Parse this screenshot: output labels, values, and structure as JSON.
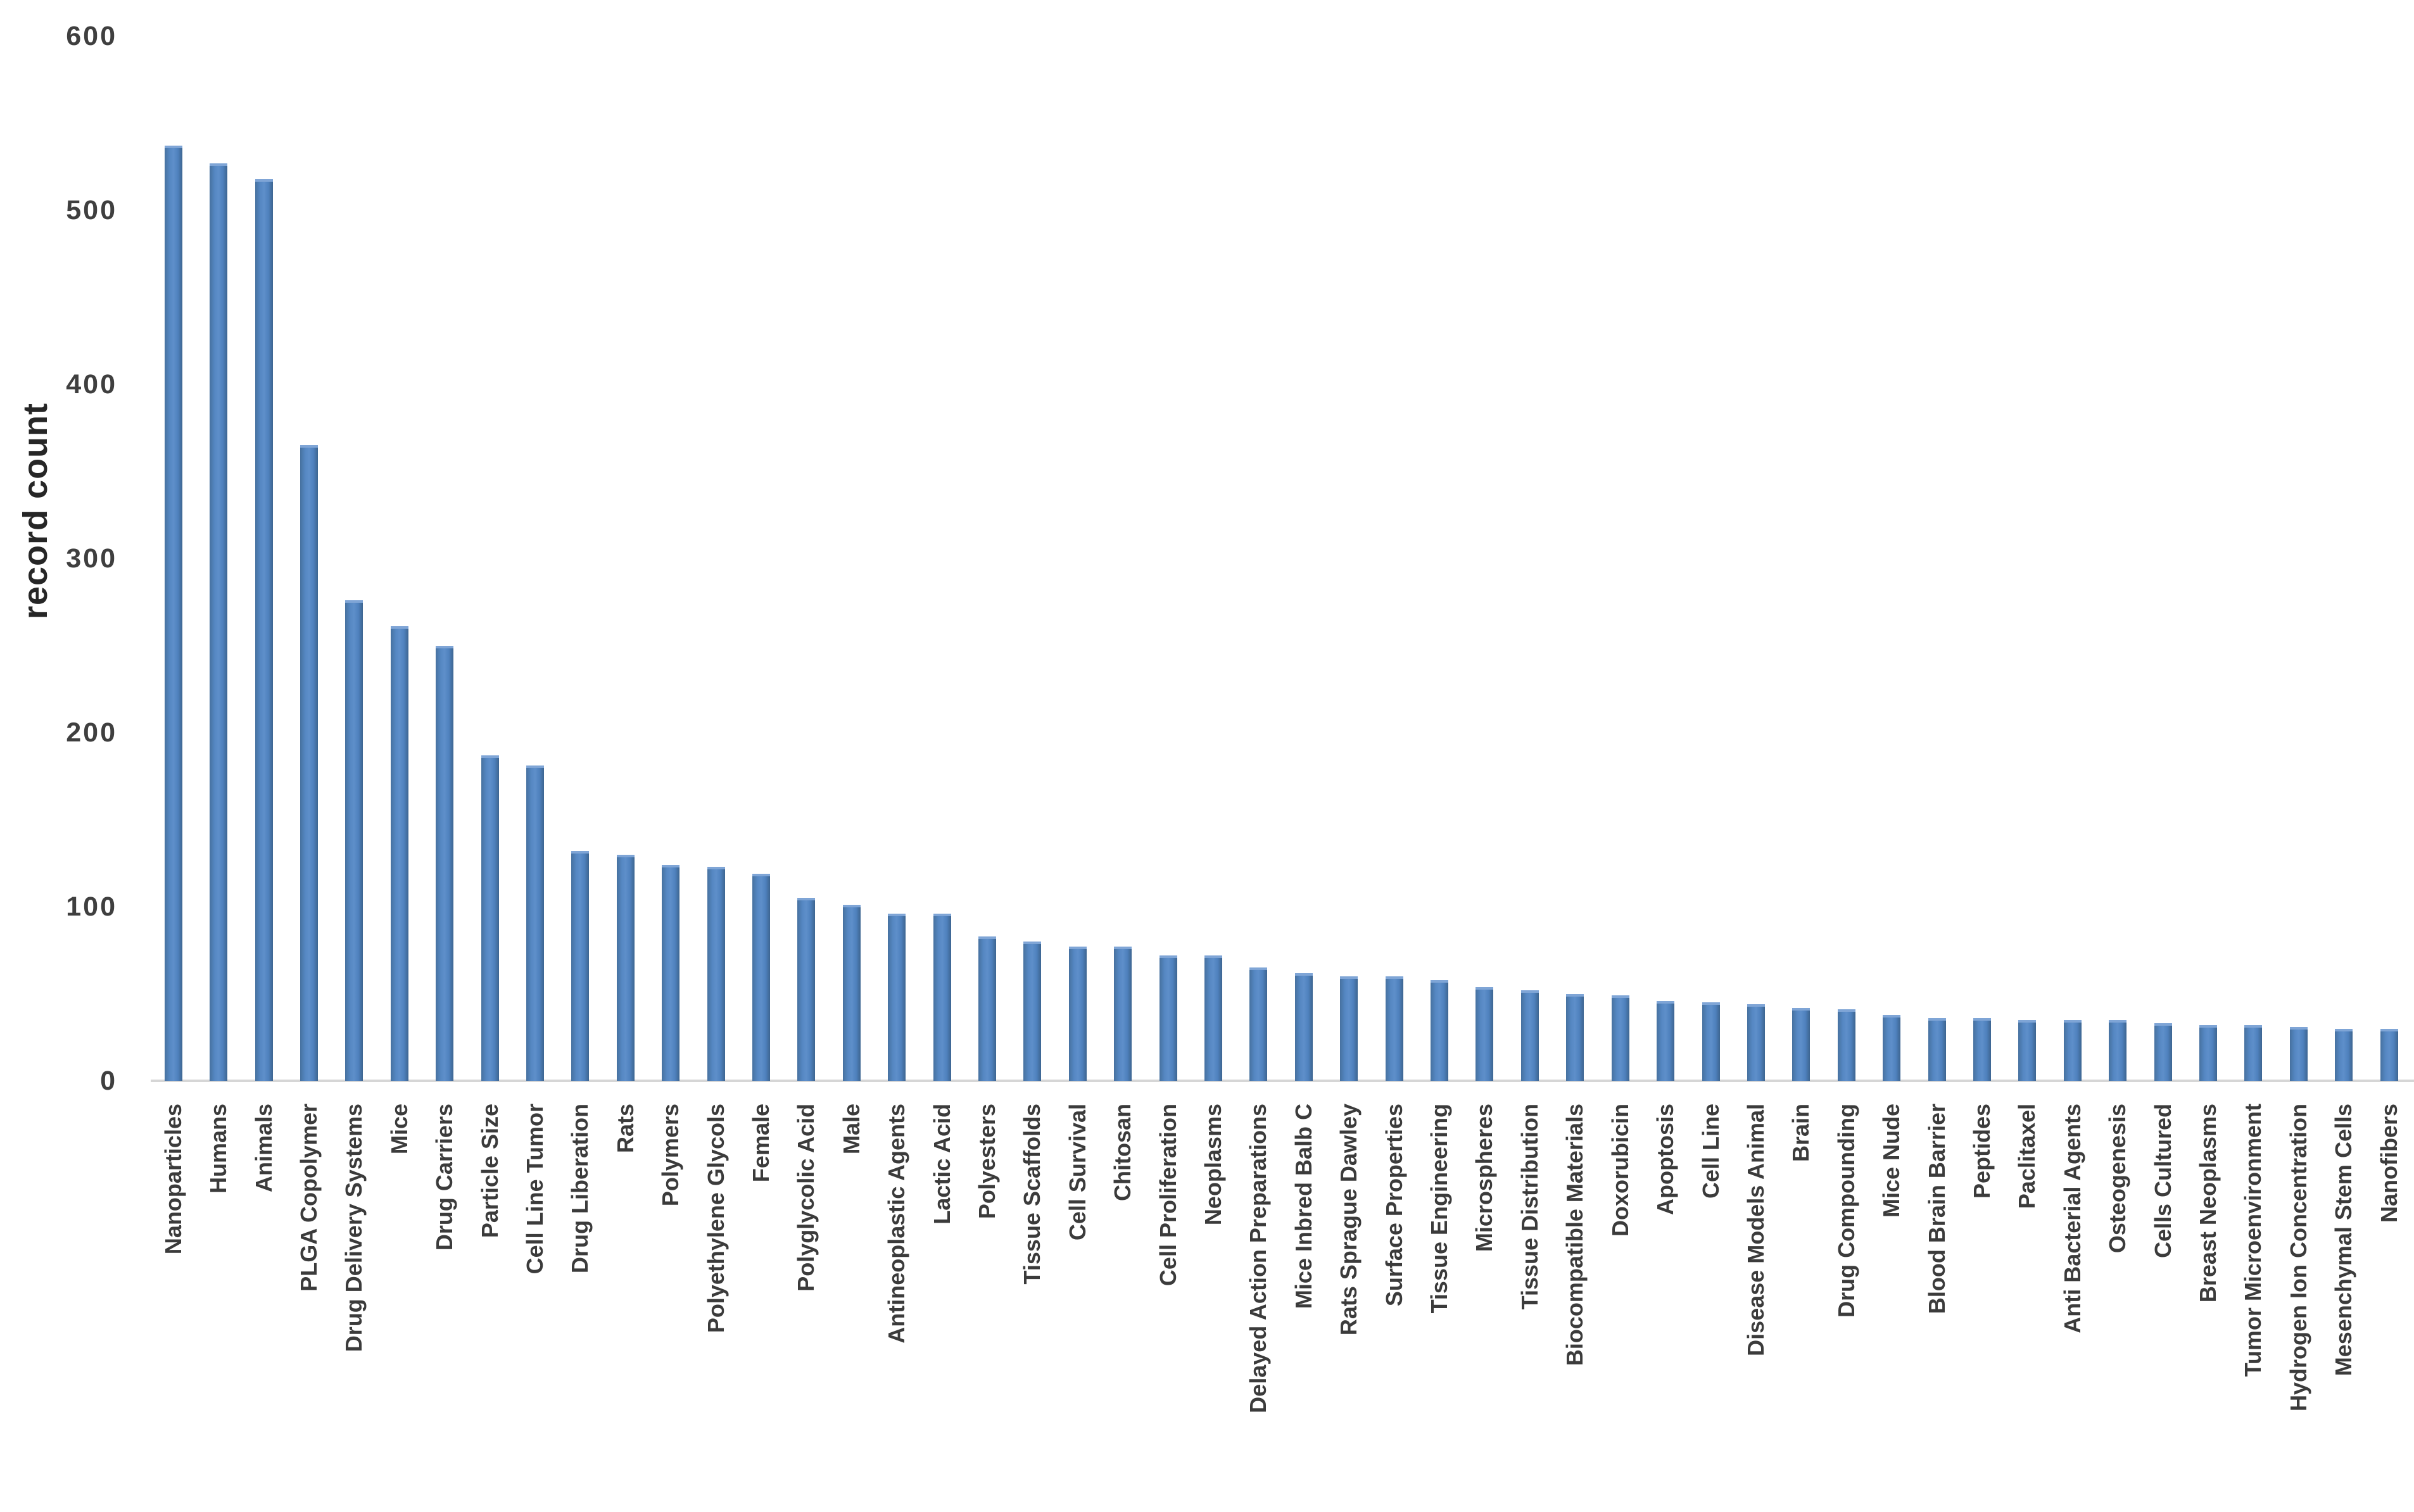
{
  "chart_data": {
    "type": "bar",
    "title": "",
    "xlabel": "",
    "ylabel": "record count",
    "ylim": [
      0,
      600
    ],
    "yticks": [
      0,
      100,
      200,
      300,
      400,
      500,
      600
    ],
    "grid": "off",
    "legend": "none",
    "bar_orientation": "vertical",
    "x_tick_label_rotation_degrees": 90,
    "categories": [
      "Nanoparticles",
      "Humans",
      "Animals",
      "PLGA Copolymer",
      "Drug Delivery Systems",
      "Mice",
      "Drug Carriers",
      "Particle Size",
      "Cell Line Tumor",
      "Drug Liberation",
      "Rats",
      "Polymers",
      "Polyethylene Glycols",
      "Female",
      "Polyglycolic Acid",
      "Male",
      "Antineoplastic Agents",
      "Lactic Acid",
      "Polyesters",
      "Tissue Scaffolds",
      "Cell Survival",
      "Chitosan",
      "Cell Proliferation",
      "Neoplasms",
      "Delayed Action Preparations",
      "Mice Inbred Balb C",
      "Rats Sprague Dawley",
      "Surface Properties",
      "Tissue Engineering",
      "Microspheres",
      "Tissue Distribution",
      "Biocompatible Materials",
      "Doxorubicin",
      "Apoptosis",
      "Cell Line",
      "Disease Models Animal",
      "Brain",
      "Drug Compounding",
      "Mice Nude",
      "Blood Brain Barrier",
      "Peptides",
      "Paclitaxel",
      "Anti Bacterial Agents",
      "Osteogenesis",
      "Cells Cultured",
      "Breast Neoplasms",
      "Tumor Microenvironment",
      "Hydrogen Ion Concentration",
      "Mesenchymal Stem Cells",
      "Nanofibers"
    ],
    "values": [
      537,
      527,
      518,
      365,
      276,
      261,
      250,
      187,
      181,
      132,
      130,
      124,
      123,
      119,
      105,
      101,
      96,
      96,
      83,
      80,
      77,
      77,
      72,
      72,
      65,
      62,
      60,
      60,
      58,
      54,
      52,
      50,
      49,
      46,
      45,
      44,
      42,
      41,
      38,
      36,
      36,
      35,
      35,
      35,
      33,
      32,
      32,
      31,
      30,
      30
    ]
  },
  "colors": {
    "bar_fill": "#4f81bd",
    "bar_edge_dark": "#3d6590",
    "bar_top_highlight": "#7fa5d6",
    "axis_line": "#d6d6d6",
    "tick_text": "#3f3f3f",
    "label_text": "#3b3b3b",
    "title_text": "#262626",
    "background": "#ffffff"
  }
}
